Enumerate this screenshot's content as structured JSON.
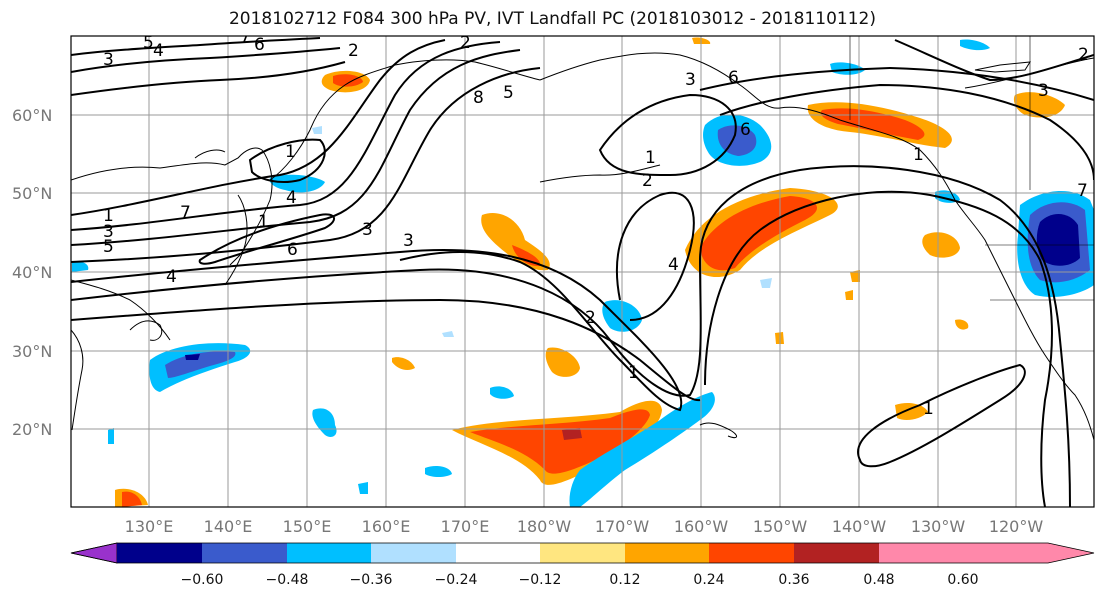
{
  "title": "2018102712 F084 300 hPa PV, IVT Landfall PC (2018103012 - 2018110112)",
  "lat_labels": [
    "60°N",
    "50°N",
    "40°N",
    "30°N",
    "20°N"
  ],
  "lon_labels": [
    "130°E",
    "140°E",
    "150°E",
    "160°E",
    "170°E",
    "180°W",
    "170°W",
    "160°W",
    "150°W",
    "140°W",
    "130°W",
    "120°W"
  ],
  "colorbar": {
    "ticks": [
      "−0.60",
      "−0.48",
      "−0.36",
      "−0.24",
      "−0.12",
      "0.12",
      "0.24",
      "0.36",
      "0.48",
      "0.60"
    ],
    "colors": [
      "#9932cc",
      "#00008b",
      "#3a5bcc",
      "#00bfff",
      "#b0e0ff",
      "#ffffff",
      "#ffe680",
      "#ffa500",
      "#ff4500",
      "#b22222",
      "#ff88aa"
    ]
  },
  "contour_labels": [
    "3",
    "5",
    "4",
    "7",
    "6",
    "2",
    "1",
    "8",
    "5",
    "3",
    "6",
    "3",
    "2",
    "1",
    "4",
    "6",
    "1",
    "7",
    "5",
    "3",
    "6",
    "4",
    "1",
    "2",
    "1",
    "4",
    "3",
    "2",
    "1",
    "1",
    "3",
    "2",
    "7"
  ]
}
